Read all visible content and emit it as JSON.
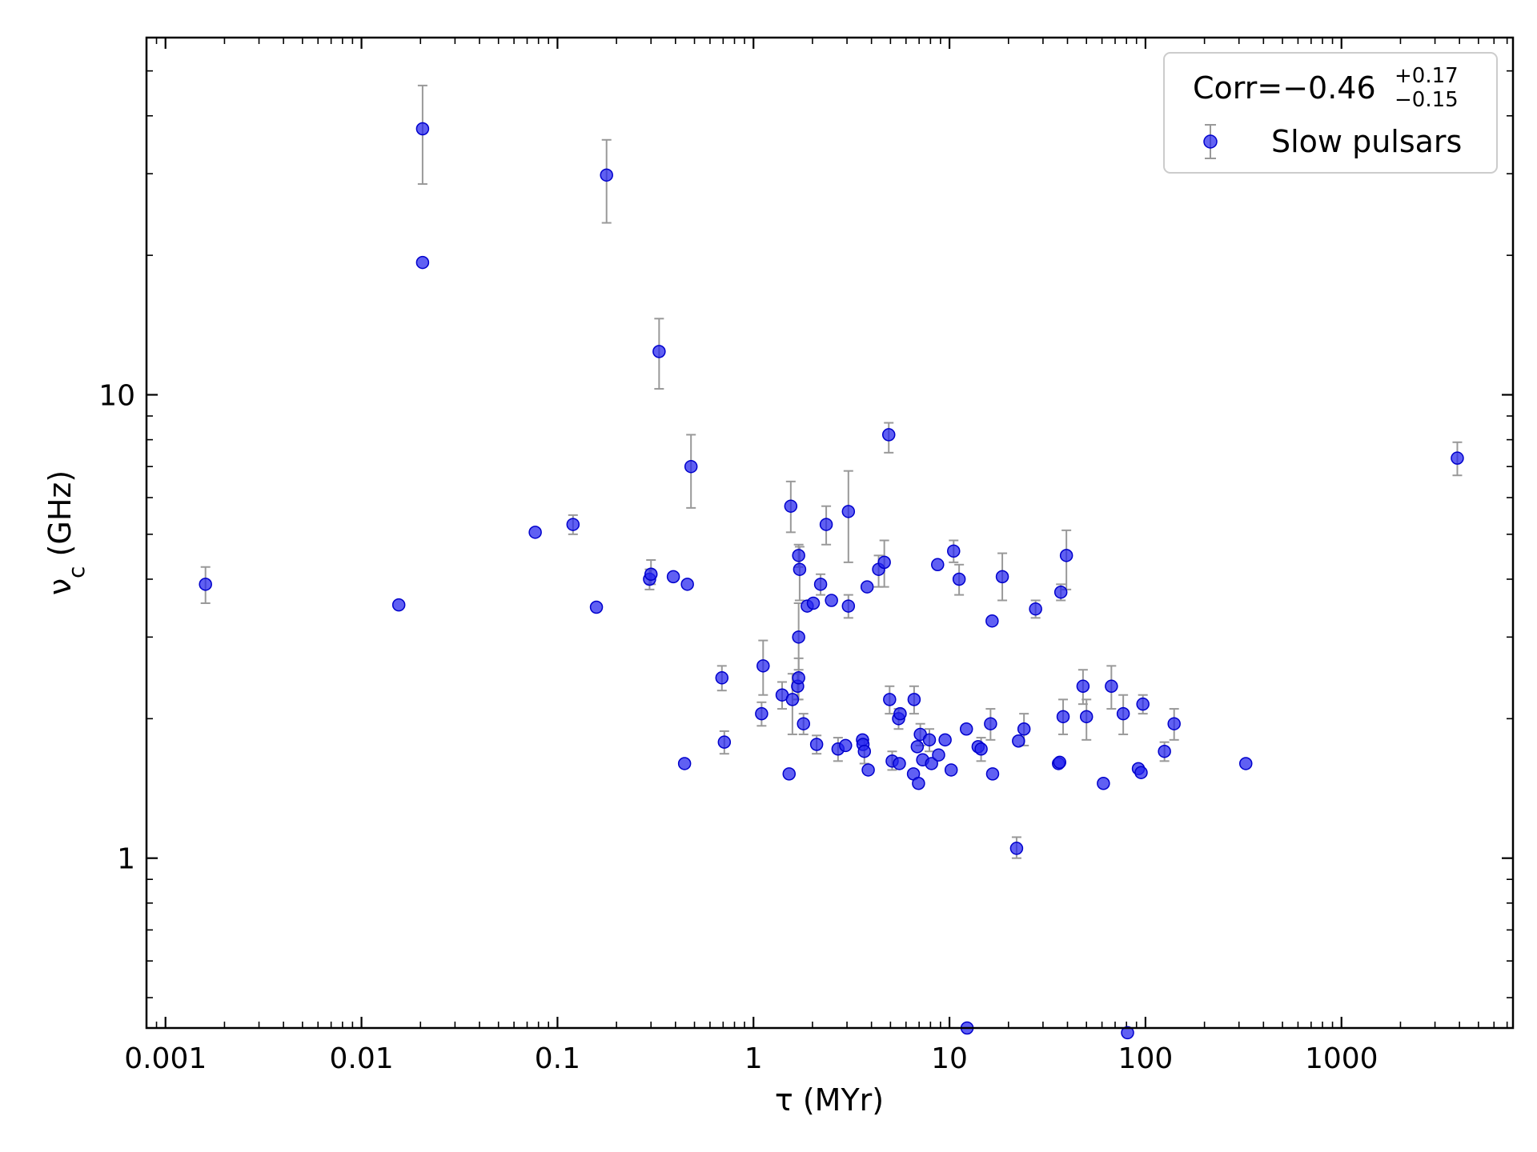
{
  "chart_data": {
    "type": "scatter",
    "xlabel": "τ (MYr)",
    "ylabel": "ν_c (GHz)",
    "xscale": "log",
    "yscale": "log",
    "xlim": [
      0.0008,
      7500
    ],
    "ylim": [
      0.43,
      59
    ],
    "grid": false,
    "x_ticks": [
      {
        "value": 0.001,
        "label": "0.001"
      },
      {
        "value": 0.01,
        "label": "0.01"
      },
      {
        "value": 0.1,
        "label": "0.1"
      },
      {
        "value": 1,
        "label": "1"
      },
      {
        "value": 10,
        "label": "10"
      },
      {
        "value": 100,
        "label": "100"
      },
      {
        "value": 1000,
        "label": "1000"
      }
    ],
    "y_ticks": [
      {
        "value": 1,
        "label": "1"
      },
      {
        "value": 10,
        "label": "10"
      }
    ],
    "legend": {
      "placement": "top-right",
      "annotation": {
        "main": "Corr=−0.46",
        "sup": "+0.17",
        "sub": "−0.15"
      }
    },
    "colors": {
      "marker": "#2222ee",
      "errorbar": "#999999"
    },
    "series": [
      {
        "name": "Slow pulsars",
        "points": [
          {
            "x": 0.0016,
            "y": 3.9,
            "lo": 3.55,
            "hi": 4.25
          },
          {
            "x": 0.0155,
            "y": 3.52
          },
          {
            "x": 0.0205,
            "y": 37.5,
            "lo": 28.5,
            "hi": 46.5
          },
          {
            "x": 0.0205,
            "y": 19.3
          },
          {
            "x": 0.077,
            "y": 5.05
          },
          {
            "x": 0.12,
            "y": 5.25,
            "lo": 5.0,
            "hi": 5.5
          },
          {
            "x": 0.158,
            "y": 3.48
          },
          {
            "x": 0.178,
            "y": 29.8,
            "lo": 23.5,
            "hi": 35.5
          },
          {
            "x": 0.295,
            "y": 4.0,
            "lo": 3.8,
            "hi": 4.2
          },
          {
            "x": 0.3,
            "y": 4.1,
            "lo": 3.9,
            "hi": 4.4
          },
          {
            "x": 0.33,
            "y": 12.4,
            "lo": 10.3,
            "hi": 14.6
          },
          {
            "x": 0.39,
            "y": 4.05
          },
          {
            "x": 0.445,
            "y": 1.6
          },
          {
            "x": 0.46,
            "y": 3.9
          },
          {
            "x": 0.48,
            "y": 7.0,
            "lo": 5.7,
            "hi": 8.2
          },
          {
            "x": 0.69,
            "y": 2.45,
            "lo": 2.3,
            "hi": 2.6
          },
          {
            "x": 0.71,
            "y": 1.78,
            "lo": 1.68,
            "hi": 1.88
          },
          {
            "x": 1.1,
            "y": 2.05,
            "lo": 1.93,
            "hi": 2.17
          },
          {
            "x": 1.12,
            "y": 2.6,
            "lo": 2.25,
            "hi": 2.95
          },
          {
            "x": 1.4,
            "y": 2.25,
            "lo": 2.1,
            "hi": 2.4
          },
          {
            "x": 1.52,
            "y": 1.52
          },
          {
            "x": 1.55,
            "y": 5.75,
            "lo": 5.05,
            "hi": 6.5
          },
          {
            "x": 1.58,
            "y": 2.2,
            "lo": 1.85,
            "hi": 2.5
          },
          {
            "x": 1.68,
            "y": 2.35,
            "lo": 2.2,
            "hi": 2.5
          },
          {
            "x": 1.7,
            "y": 2.45,
            "lo": 2.2,
            "hi": 2.7
          },
          {
            "x": 1.7,
            "y": 3.0,
            "lo": 2.55,
            "hi": 3.55
          },
          {
            "x": 1.7,
            "y": 4.5,
            "lo": 4.25,
            "hi": 4.75
          },
          {
            "x": 1.72,
            "y": 4.2,
            "lo": 3.6,
            "hi": 4.7
          },
          {
            "x": 1.8,
            "y": 1.95,
            "lo": 1.85,
            "hi": 2.05
          },
          {
            "x": 1.88,
            "y": 3.5
          },
          {
            "x": 2.02,
            "y": 3.55
          },
          {
            "x": 2.1,
            "y": 1.76,
            "lo": 1.68,
            "hi": 1.84
          },
          {
            "x": 2.2,
            "y": 3.9,
            "lo": 3.7,
            "hi": 4.1
          },
          {
            "x": 2.35,
            "y": 5.25,
            "lo": 4.75,
            "hi": 5.75
          },
          {
            "x": 2.5,
            "y": 3.6
          },
          {
            "x": 2.7,
            "y": 1.72,
            "lo": 1.62,
            "hi": 1.82
          },
          {
            "x": 2.95,
            "y": 1.75
          },
          {
            "x": 3.05,
            "y": 3.5,
            "lo": 3.3,
            "hi": 3.7
          },
          {
            "x": 3.05,
            "y": 5.6,
            "lo": 4.35,
            "hi": 6.85
          },
          {
            "x": 3.6,
            "y": 1.8
          },
          {
            "x": 3.62,
            "y": 1.76
          },
          {
            "x": 3.68,
            "y": 1.7,
            "lo": 1.6,
            "hi": 1.8
          },
          {
            "x": 3.8,
            "y": 3.85
          },
          {
            "x": 3.85,
            "y": 1.55
          },
          {
            "x": 4.35,
            "y": 4.2,
            "lo": 3.85,
            "hi": 4.5
          },
          {
            "x": 4.65,
            "y": 4.35,
            "lo": 3.85,
            "hi": 4.85
          },
          {
            "x": 4.9,
            "y": 8.2,
            "lo": 7.5,
            "hi": 8.7
          },
          {
            "x": 4.95,
            "y": 2.2,
            "lo": 2.05,
            "hi": 2.35
          },
          {
            "x": 5.1,
            "y": 1.62,
            "lo": 1.55,
            "hi": 1.7
          },
          {
            "x": 5.5,
            "y": 2.0,
            "lo": 1.9,
            "hi": 2.1
          },
          {
            "x": 5.55,
            "y": 1.6
          },
          {
            "x": 5.6,
            "y": 2.05
          },
          {
            "x": 6.55,
            "y": 1.52
          },
          {
            "x": 6.6,
            "y": 2.2,
            "lo": 2.05,
            "hi": 2.35
          },
          {
            "x": 6.85,
            "y": 1.74
          },
          {
            "x": 6.95,
            "y": 1.45
          },
          {
            "x": 7.1,
            "y": 1.85,
            "lo": 1.75,
            "hi": 1.95
          },
          {
            "x": 7.3,
            "y": 1.63
          },
          {
            "x": 7.9,
            "y": 1.8,
            "lo": 1.7,
            "hi": 1.9
          },
          {
            "x": 8.1,
            "y": 1.6
          },
          {
            "x": 8.7,
            "y": 4.3
          },
          {
            "x": 8.8,
            "y": 1.67
          },
          {
            "x": 9.5,
            "y": 1.8
          },
          {
            "x": 10.2,
            "y": 1.55
          },
          {
            "x": 10.5,
            "y": 4.6,
            "lo": 4.35,
            "hi": 4.85
          },
          {
            "x": 11.2,
            "y": 4.0,
            "lo": 3.7,
            "hi": 4.3
          },
          {
            "x": 12.2,
            "y": 1.9
          },
          {
            "x": 12.3,
            "y": 0.43
          },
          {
            "x": 14.0,
            "y": 1.74
          },
          {
            "x": 14.5,
            "y": 1.72,
            "lo": 1.62,
            "hi": 1.82
          },
          {
            "x": 16.2,
            "y": 1.95,
            "lo": 1.8,
            "hi": 2.1
          },
          {
            "x": 16.5,
            "y": 3.25
          },
          {
            "x": 16.6,
            "y": 1.52
          },
          {
            "x": 18.6,
            "y": 4.05,
            "lo": 3.6,
            "hi": 4.55
          },
          {
            "x": 22.0,
            "y": 1.05,
            "lo": 1.0,
            "hi": 1.11
          },
          {
            "x": 22.5,
            "y": 1.79
          },
          {
            "x": 24.0,
            "y": 1.9,
            "lo": 1.75,
            "hi": 2.05
          },
          {
            "x": 27.5,
            "y": 3.45,
            "lo": 3.3,
            "hi": 3.6
          },
          {
            "x": 36.0,
            "y": 1.6
          },
          {
            "x": 36.5,
            "y": 1.61
          },
          {
            "x": 37.0,
            "y": 3.75,
            "lo": 3.6,
            "hi": 3.9
          },
          {
            "x": 38.0,
            "y": 2.02,
            "lo": 1.85,
            "hi": 2.2
          },
          {
            "x": 39.5,
            "y": 4.5,
            "lo": 3.8,
            "hi": 5.1
          },
          {
            "x": 48.0,
            "y": 2.35,
            "lo": 2.15,
            "hi": 2.55
          },
          {
            "x": 50.0,
            "y": 2.02,
            "lo": 1.8,
            "hi": 2.2
          },
          {
            "x": 61.0,
            "y": 1.45
          },
          {
            "x": 67.0,
            "y": 2.35,
            "lo": 2.1,
            "hi": 2.6
          },
          {
            "x": 77.0,
            "y": 2.05,
            "lo": 1.85,
            "hi": 2.25
          },
          {
            "x": 81.0,
            "y": 0.42
          },
          {
            "x": 92.0,
            "y": 1.56
          },
          {
            "x": 95.0,
            "y": 1.53
          },
          {
            "x": 97.0,
            "y": 2.15,
            "lo": 2.05,
            "hi": 2.25
          },
          {
            "x": 125.0,
            "y": 1.7,
            "lo": 1.62,
            "hi": 1.78
          },
          {
            "x": 140.0,
            "y": 1.95,
            "lo": 1.8,
            "hi": 2.1
          },
          {
            "x": 325.0,
            "y": 1.6
          },
          {
            "x": 3900.0,
            "y": 7.3,
            "lo": 6.7,
            "hi": 7.9
          }
        ]
      }
    ]
  }
}
